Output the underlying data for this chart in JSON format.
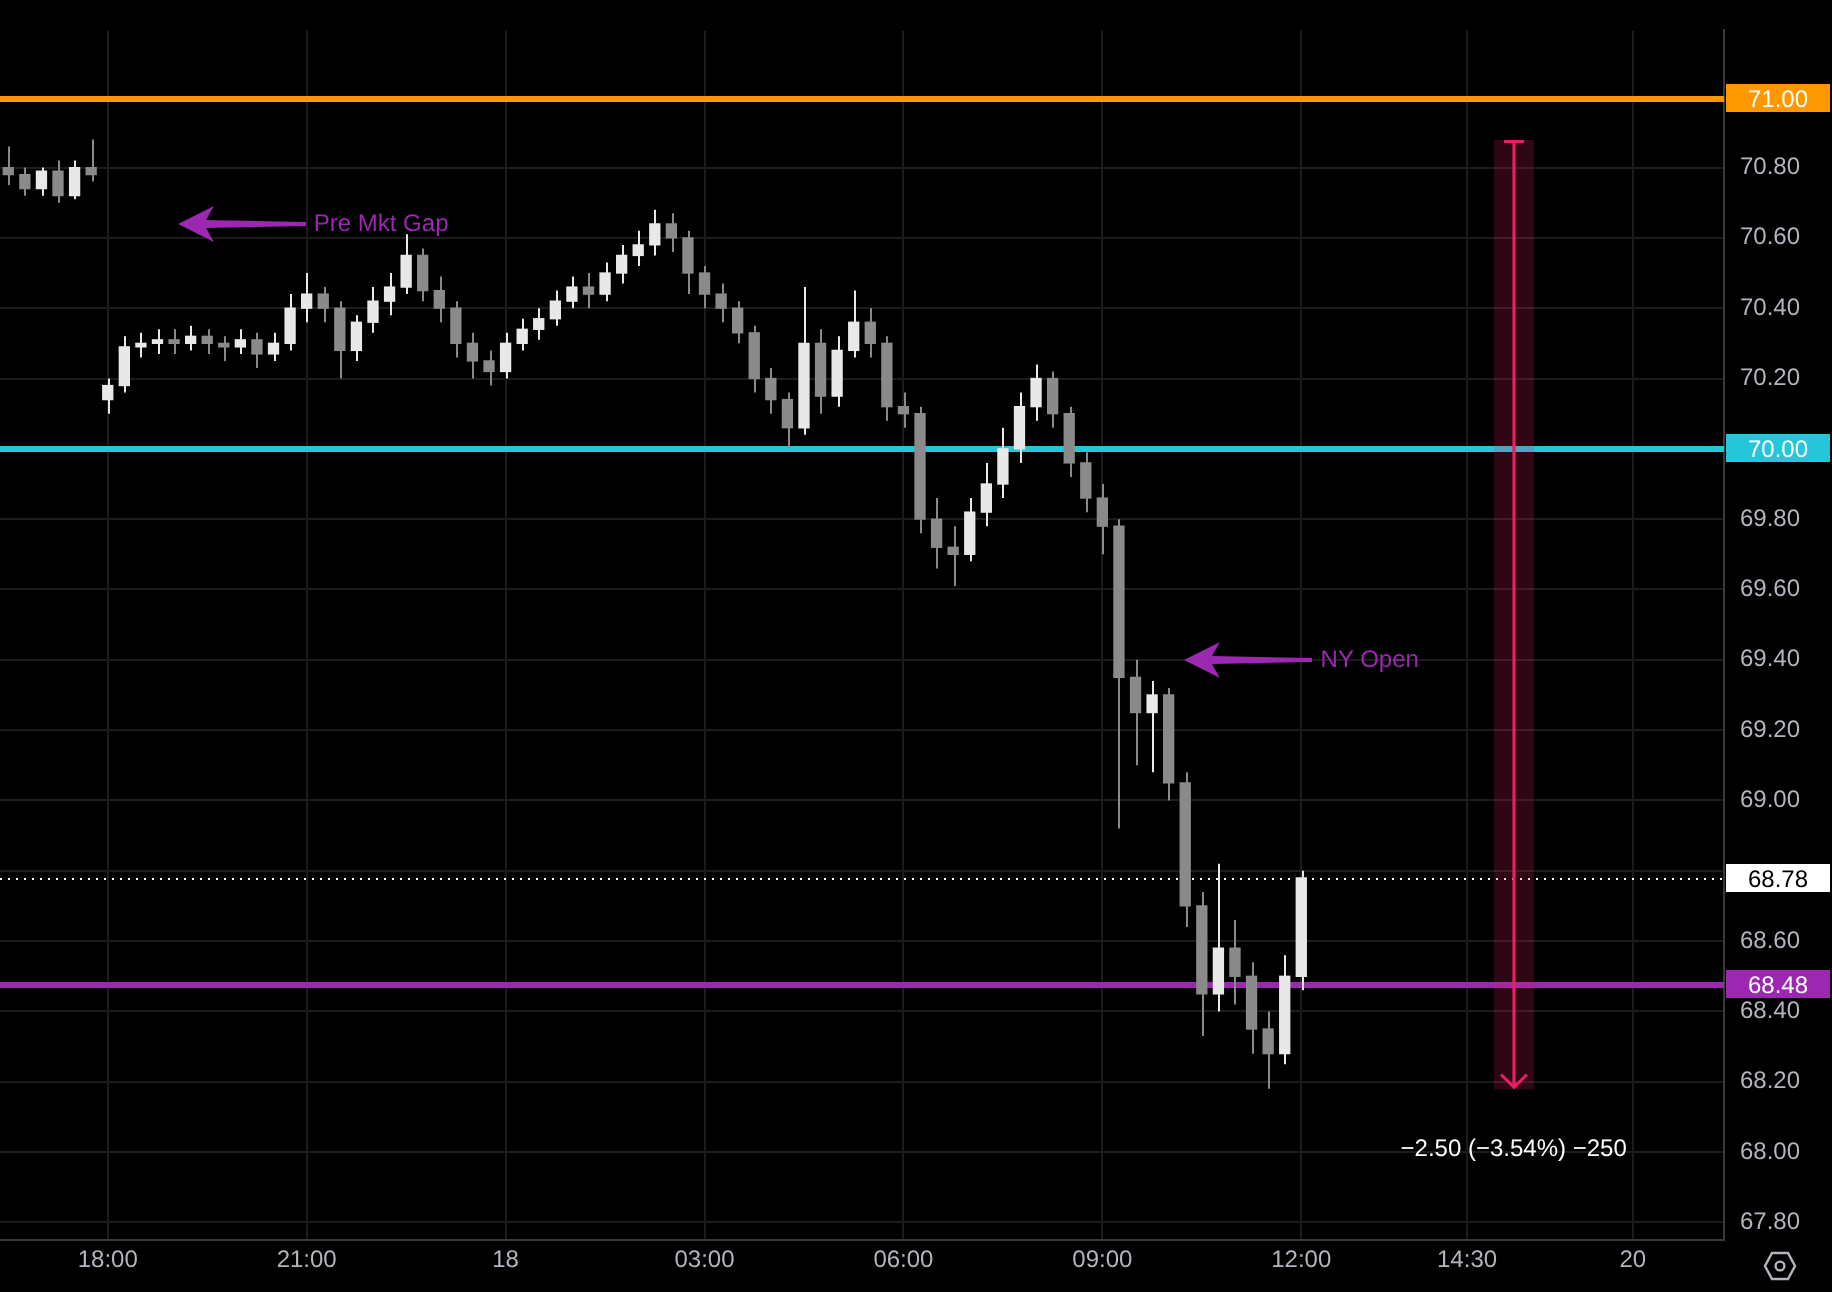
{
  "chart_data": {
    "type": "candlestick",
    "grid": true,
    "colors": [
      "#8a8a8a",
      "#8a8a8a",
      "#e8e8e8",
      "#8a8a8a",
      "#e8e8e8",
      "#8a8a8a",
      "#e8e8e8",
      "#e8e8e8",
      "#e8e8e8",
      "#e8e8e8",
      "#8a8a8a",
      "#e8e8e8",
      "#8a8a8a",
      "#8a8a8a",
      "#e8e8e8",
      "#8a8a8a",
      "#e8e8e8",
      "#e8e8e8",
      "#e8e8e8",
      "#8a8a8a",
      "#8a8a8a",
      "#e8e8e8",
      "#e8e8e8",
      "#e8e8e8",
      "#e8e8e8",
      "#8a8a8a",
      "#8a8a8a",
      "#8a8a8a",
      "#8a8a8a",
      "#8a8a8a",
      "#e8e8e8",
      "#e8e8e8",
      "#e8e8e8",
      "#e8e8e8",
      "#e8e8e8",
      "#8a8a8a",
      "#e8e8e8",
      "#e8e8e8",
      "#e8e8e8",
      "#e8e8e8",
      "#8a8a8a",
      "#8a8a8a",
      "#8a8a8a",
      "#8a8a8a",
      "#8a8a8a",
      "#8a8a8a",
      "#8a8a8a",
      "#8a8a8a",
      "#e8e8e8",
      "#8a8a8a",
      "#e8e8e8",
      "#e8e8e8",
      "#8a8a8a",
      "#8a8a8a",
      "#8a8a8a",
      "#8a8a8a",
      "#8a8a8a",
      "#8a8a8a",
      "#e8e8e8",
      "#e8e8e8",
      "#e8e8e8",
      "#e8e8e8",
      "#e8e8e8",
      "#8a8a8a",
      "#8a8a8a",
      "#8a8a8a",
      "#8a8a8a",
      "#8a8a8a",
      "#8a8a8a",
      "#e8e8e8",
      "#8a8a8a",
      "#8a8a8a",
      "#8a8a8a",
      "#e8e8e8",
      "#8a8a8a",
      "#8a8a8a",
      "#8a8a8a",
      "#e8e8e8",
      "#e8e8e8",
      null,
      null,
      null,
      null,
      null,
      null,
      null,
      null,
      null,
      null,
      null,
      null,
      null,
      null,
      null,
      null,
      null,
      null,
      null,
      null,
      null,
      null,
      null,
      null,
      null
    ],
    "categories": [
      null,
      null,
      null,
      null,
      null,
      null,
      "18:00",
      null,
      null,
      null,
      null,
      null,
      null,
      null,
      null,
      null,
      null,
      null,
      "21:00",
      null,
      null,
      null,
      null,
      null,
      null,
      null,
      null,
      null,
      null,
      null,
      "18",
      null,
      null,
      null,
      null,
      null,
      null,
      null,
      null,
      null,
      null,
      null,
      "03:00",
      null,
      null,
      null,
      null,
      null,
      null,
      null,
      null,
      null,
      null,
      null,
      "06:00",
      null,
      null,
      null,
      null,
      null,
      null,
      null,
      null,
      null,
      null,
      null,
      "09:00",
      null,
      null,
      null,
      null,
      null,
      null,
      null,
      null,
      null,
      null,
      null,
      "12:00",
      null,
      null,
      null,
      null,
      null,
      null,
      null,
      null,
      null,
      "14:30",
      null,
      null,
      null,
      null,
      null,
      null,
      null,
      null,
      null,
      "20",
      null,
      null,
      null,
      null,
      null
    ],
    "ylim": [
      67.75,
      71.19
    ],
    "yticks": [
      {
        "value": 67.8,
        "label": "67.80"
      },
      {
        "value": 68.0,
        "label": "68.00"
      },
      {
        "value": 68.2,
        "label": "68.20"
      },
      {
        "value": 68.4,
        "label": "68.40"
      },
      {
        "value": 68.6,
        "label": "68.60"
      },
      {
        "value": 68.8,
        "label": null
      },
      {
        "value": 69.0,
        "label": "69.00"
      },
      {
        "value": 69.2,
        "label": "69.20"
      },
      {
        "value": 69.4,
        "label": "69.40"
      },
      {
        "value": 69.6,
        "label": "69.60"
      },
      {
        "value": 69.8,
        "label": "69.80"
      },
      {
        "value": 70.0,
        "label": null
      },
      {
        "value": 70.2,
        "label": "70.20"
      },
      {
        "value": 70.4,
        "label": "70.40"
      },
      {
        "value": 70.6,
        "label": "70.60"
      },
      {
        "value": 70.8,
        "label": "70.80"
      },
      {
        "value": 71.0,
        "label": null
      }
    ],
    "ohlc": [
      [
        70.8,
        70.86,
        70.75,
        70.78
      ],
      [
        70.78,
        70.8,
        70.72,
        70.74
      ],
      [
        70.74,
        70.8,
        70.72,
        70.79
      ],
      [
        70.79,
        70.82,
        70.7,
        70.72
      ],
      [
        70.72,
        70.82,
        70.71,
        70.8
      ],
      [
        70.8,
        70.88,
        70.76,
        70.78
      ],
      [
        70.14,
        70.2,
        70.1,
        70.18
      ],
      [
        70.18,
        70.32,
        70.16,
        70.29
      ],
      [
        70.29,
        70.33,
        70.26,
        70.3
      ],
      [
        70.3,
        70.34,
        70.27,
        70.31
      ],
      [
        70.31,
        70.34,
        70.27,
        70.3
      ],
      [
        70.3,
        70.35,
        70.28,
        70.32
      ],
      [
        70.32,
        70.34,
        70.27,
        70.3
      ],
      [
        70.3,
        70.32,
        70.25,
        70.29
      ],
      [
        70.29,
        70.34,
        70.27,
        70.31
      ],
      [
        70.31,
        70.33,
        70.23,
        70.27
      ],
      [
        70.27,
        70.33,
        70.25,
        70.3
      ],
      [
        70.3,
        70.44,
        70.28,
        70.4
      ],
      [
        70.4,
        70.5,
        70.36,
        70.44
      ],
      [
        70.44,
        70.46,
        70.36,
        70.4
      ],
      [
        70.4,
        70.42,
        70.2,
        70.28
      ],
      [
        70.28,
        70.38,
        70.25,
        70.36
      ],
      [
        70.36,
        70.46,
        70.33,
        70.42
      ],
      [
        70.42,
        70.5,
        70.38,
        70.46
      ],
      [
        70.46,
        70.61,
        70.44,
        70.55
      ],
      [
        70.55,
        70.57,
        70.42,
        70.45
      ],
      [
        70.45,
        70.49,
        70.36,
        70.4
      ],
      [
        70.4,
        70.42,
        70.26,
        70.3
      ],
      [
        70.3,
        70.33,
        70.2,
        70.25
      ],
      [
        70.25,
        70.28,
        70.18,
        70.22
      ],
      [
        70.22,
        70.33,
        70.2,
        70.3
      ],
      [
        70.3,
        70.37,
        70.28,
        70.34
      ],
      [
        70.34,
        70.4,
        70.31,
        70.37
      ],
      [
        70.37,
        70.45,
        70.35,
        70.42
      ],
      [
        70.42,
        70.49,
        70.4,
        70.46
      ],
      [
        70.46,
        70.5,
        70.4,
        70.44
      ],
      [
        70.44,
        70.53,
        70.42,
        70.5
      ],
      [
        70.5,
        70.58,
        70.47,
        70.55
      ],
      [
        70.55,
        70.62,
        70.52,
        70.58
      ],
      [
        70.58,
        70.68,
        70.55,
        70.64
      ],
      [
        70.64,
        70.67,
        70.56,
        70.6
      ],
      [
        70.6,
        70.62,
        70.44,
        70.5
      ],
      [
        70.5,
        70.52,
        70.4,
        70.44
      ],
      [
        70.44,
        70.47,
        70.36,
        70.4
      ],
      [
        70.4,
        70.42,
        70.3,
        70.33
      ],
      [
        70.33,
        70.35,
        70.16,
        70.2
      ],
      [
        70.2,
        70.23,
        70.1,
        70.14
      ],
      [
        70.14,
        70.16,
        70.0,
        70.06
      ],
      [
        70.06,
        70.46,
        70.04,
        70.3
      ],
      [
        70.3,
        70.34,
        70.1,
        70.15
      ],
      [
        70.15,
        70.32,
        70.12,
        70.28
      ],
      [
        70.28,
        70.45,
        70.26,
        70.36
      ],
      [
        70.36,
        70.4,
        70.26,
        70.3
      ],
      [
        70.3,
        70.32,
        70.08,
        70.12
      ],
      [
        70.12,
        70.16,
        70.06,
        70.1
      ],
      [
        70.1,
        70.12,
        69.76,
        69.8
      ],
      [
        69.8,
        69.86,
        69.66,
        69.72
      ],
      [
        69.72,
        69.78,
        69.61,
        69.7
      ],
      [
        69.7,
        69.86,
        69.68,
        69.82
      ],
      [
        69.82,
        69.96,
        69.78,
        69.9
      ],
      [
        69.9,
        70.06,
        69.86,
        70.0
      ],
      [
        70.0,
        70.16,
        69.96,
        70.12
      ],
      [
        70.12,
        70.24,
        70.08,
        70.2
      ],
      [
        70.2,
        70.22,
        70.06,
        70.1
      ],
      [
        70.1,
        70.12,
        69.92,
        69.96
      ],
      [
        69.96,
        69.99,
        69.82,
        69.86
      ],
      [
        69.86,
        69.9,
        69.7,
        69.78
      ],
      [
        69.78,
        69.8,
        68.92,
        69.35
      ],
      [
        69.35,
        69.4,
        69.1,
        69.25
      ],
      [
        69.25,
        69.34,
        69.08,
        69.3
      ],
      [
        69.3,
        69.32,
        69.0,
        69.05
      ],
      [
        69.05,
        69.08,
        68.64,
        68.7
      ],
      [
        68.7,
        68.74,
        68.33,
        68.45
      ],
      [
        68.45,
        68.82,
        68.4,
        68.58
      ],
      [
        68.58,
        68.66,
        68.42,
        68.5
      ],
      [
        68.5,
        68.54,
        68.28,
        68.35
      ],
      [
        68.35,
        68.4,
        68.18,
        68.28
      ],
      [
        68.28,
        68.56,
        68.25,
        68.5
      ],
      [
        68.5,
        68.8,
        68.46,
        68.78
      ],
      null,
      null,
      null,
      null,
      null,
      null,
      null,
      null,
      null,
      null,
      null,
      null,
      null,
      null,
      null,
      null,
      null,
      null,
      null,
      null,
      null,
      null,
      null,
      null,
      null
    ],
    "ref_lines": [
      {
        "axis": "y",
        "value": 71.0,
        "label": "71.00",
        "color": "#ff9800",
        "line_style": "solid"
      },
      {
        "axis": "y",
        "value": 70.0,
        "label": "70.00",
        "color": "#26c6da",
        "line_style": "solid"
      },
      {
        "axis": "y",
        "value": 68.78,
        "label": "68.78",
        "color": "#ffffff",
        "line_style": "dotted"
      },
      {
        "axis": "y",
        "value": 68.48,
        "label": "68.48",
        "color": "#9c27b0",
        "line_style": "solid"
      }
    ],
    "annotations": [
      "Pre Mkt Gap",
      "NY Open",
      "−2.50 (−3.54%) −250"
    ]
  }
}
